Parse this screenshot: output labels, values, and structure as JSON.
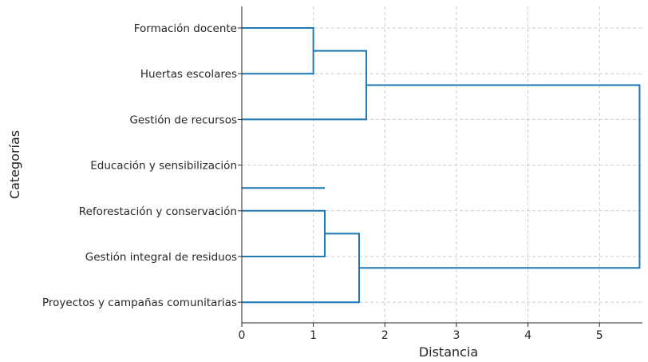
{
  "chart_data": {
    "type": "dendrogram",
    "orientation": "horizontal",
    "title": "",
    "xlabel": "Distancia",
    "ylabel": "Categorías",
    "xlim": [
      0,
      5.6
    ],
    "xticks": [
      0,
      1,
      2,
      3,
      4,
      5
    ],
    "grid": true,
    "line_color": "#1f77b4",
    "categories": [
      "Formación docente",
      "Huertas escolares",
      "Gestión de recursos",
      "Educación y sensibilización",
      "Reforestación y conservación",
      "Gestión integral de residuos",
      "Proyectos y campañas comunitarias"
    ],
    "links": [
      {
        "top": 0,
        "bottom": 1,
        "distance": 1.0
      },
      {
        "top": 0.5,
        "bottom": 2,
        "distance": 1.74
      },
      {
        "top": 4.0,
        "bottom": 5,
        "distance": 1.16
      },
      {
        "top": 4.5,
        "bottom": 6,
        "distance": 1.64
      },
      {
        "top": 1.25,
        "bottom": 5.25,
        "distance": 5.56
      }
    ],
    "extra_branches": [
      {
        "row": 3.5,
        "from": 0,
        "to": 1.16
      }
    ]
  }
}
